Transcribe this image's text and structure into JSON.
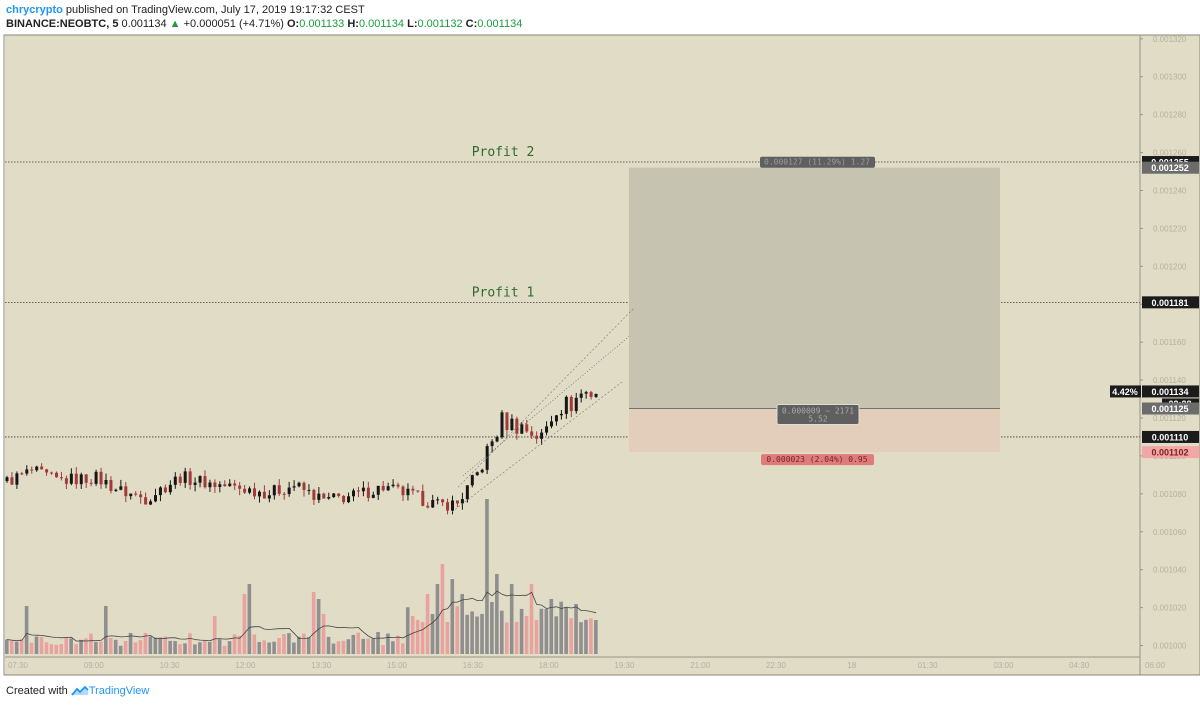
{
  "header": {
    "author": "chrycrypto",
    "published_text": " published on TradingView.com, July 17, 2019 19:17:32 CEST",
    "symbol": "BINANCE:NEOBTC, 5",
    "last": "0.001134",
    "change": "+0.000051 (+4.71%)",
    "o_label": "O:",
    "o_value": "0.001133",
    "h_label": "H:",
    "h_value": "0.001134",
    "l_label": "L:",
    "l_value": "0.001132",
    "c_label": "C:",
    "c_value": "0.001134"
  },
  "footer": {
    "created_with": "Created with",
    "brand": "TradingView"
  },
  "colors": {
    "background": "#e1dcc6",
    "up": "#161616",
    "down": "#a13b3b",
    "vol_up": "#8f8f8f",
    "vol_down": "#e9a39e",
    "profit_zone": "#c6c3b0",
    "stop_zone": "#e3cdbb",
    "profit_label": "#2e6b2e"
  },
  "chart_data": {
    "type": "candlestick",
    "x_ticks": [
      "07:30",
      "09:00",
      "10:30",
      "12:00",
      "13:30",
      "15:00",
      "16:30",
      "18:00",
      "19:30",
      "21:00",
      "22:30",
      "18",
      "01:30",
      "03:00",
      "04:30",
      "06:00"
    ],
    "y_ticks": [
      "0.001320",
      "0.001300",
      "0.001280",
      "0.001260",
      "0.001240",
      "0.001220",
      "0.001200",
      "0.001180",
      "0.001160",
      "0.001140",
      "0.001120",
      "0.001100",
      "0.001080",
      "0.001060",
      "0.001040",
      "0.001020",
      "0.001000"
    ],
    "ylim": [
      0.000995,
      0.001322
    ],
    "price_labels": [
      {
        "value": 0.001255,
        "text": "0.001255",
        "style": "dark"
      },
      {
        "value": 0.001252,
        "text": "0.001252",
        "style": "gray"
      },
      {
        "value": 0.001181,
        "text": "0.001181",
        "style": "dark"
      },
      {
        "value": 0.001134,
        "text": "0.001134",
        "style": "dark",
        "prefix": "4.42%",
        "countdown": "02:28"
      },
      {
        "value": 0.001125,
        "text": "0.001125",
        "style": "gray"
      },
      {
        "value": 0.00111,
        "text": "0.001110",
        "style": "dark"
      },
      {
        "value": 0.001102,
        "text": "0.001102",
        "style": "red"
      }
    ],
    "horizontal_lines": [
      {
        "value": 0.001255,
        "label": "Profit 2"
      },
      {
        "value": 0.001181,
        "label": "Profit 1"
      },
      {
        "value": 0.00111,
        "label": ""
      }
    ],
    "position": {
      "entry": 0.001125,
      "target": 0.001252,
      "stop": 0.001102,
      "target_label": "0.000127 (11.29%) 1.27",
      "entry_label_line1": "0.000009 ~ 2171",
      "entry_label_line2": "5.52",
      "stop_label": "0.000023 (2.04%) 0.95"
    },
    "candles": {
      "count": 120,
      "segments": [
        {
          "t": 0,
          "p": 0.0010865
        },
        {
          "t": 5,
          "p": 0.001092
        },
        {
          "t": 10,
          "p": 0.001087
        },
        {
          "t": 18,
          "p": 0.0010885
        },
        {
          "t": 23,
          "p": 0.0010815
        },
        {
          "t": 28,
          "p": 0.0010775
        },
        {
          "t": 35,
          "p": 0.001089
        },
        {
          "t": 41,
          "p": 0.0010855
        },
        {
          "t": 47,
          "p": 0.001083
        },
        {
          "t": 53,
          "p": 0.0010805
        },
        {
          "t": 58,
          "p": 0.0010845
        },
        {
          "t": 64,
          "p": 0.0010765
        },
        {
          "t": 70,
          "p": 0.001079
        },
        {
          "t": 76,
          "p": 0.0010835
        },
        {
          "t": 82,
          "p": 0.001079
        },
        {
          "t": 87,
          "p": 0.001074
        },
        {
          "t": 91,
          "p": 0.001075
        },
        {
          "t": 95,
          "p": 0.0010905
        },
        {
          "t": 100,
          "p": 0.0011185
        },
        {
          "t": 104,
          "p": 0.0011155
        },
        {
          "t": 108,
          "p": 0.0011095
        },
        {
          "t": 111,
          "p": 0.001126
        },
        {
          "t": 114,
          "p": 0.0011275
        },
        {
          "t": 116,
          "p": 0.001133
        },
        {
          "t": 119,
          "p": 0.001134
        }
      ]
    }
  }
}
